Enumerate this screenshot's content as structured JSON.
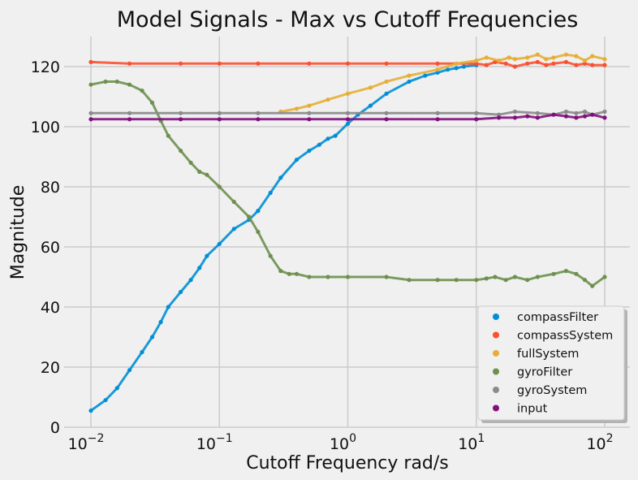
{
  "chart_data": {
    "type": "scatter",
    "title": "Model Signals - Max vs Cutoff Frequencies",
    "xlabel": "Cutoff Frequency rad/s",
    "ylabel": "Magnitude",
    "x_scale": "log",
    "xlim": [
      0.01,
      100
    ],
    "ylim": [
      0,
      130
    ],
    "x_ticks": [
      {
        "base": "10",
        "exp": "−2"
      },
      {
        "base": "10",
        "exp": "−1"
      },
      {
        "base": "10",
        "exp": "0"
      },
      {
        "base": "10",
        "exp": "1"
      },
      {
        "base": "10",
        "exp": "2"
      }
    ],
    "y_ticks": [
      "0",
      "20",
      "40",
      "60",
      "80",
      "100",
      "120"
    ],
    "grid": true,
    "legend_position": "lower-right",
    "series": [
      {
        "name": "compassFilter",
        "color": "#008fd5",
        "x": [
          0.01,
          0.013,
          0.016,
          0.02,
          0.025,
          0.03,
          0.035,
          0.04,
          0.05,
          0.06,
          0.07,
          0.08,
          0.1,
          0.13,
          0.17,
          0.2,
          0.25,
          0.3,
          0.4,
          0.5,
          0.6,
          0.7,
          0.8,
          1.0,
          1.2,
          1.5,
          2.0,
          3.0,
          4.0,
          5.0,
          6.0,
          7.0,
          8.0,
          10.0
        ],
        "y": [
          5.5,
          9.0,
          13.0,
          19.0,
          25.0,
          30.0,
          35.0,
          40.0,
          45.0,
          49.0,
          53.0,
          57.0,
          61.0,
          66.0,
          69.0,
          72.0,
          78.0,
          83.0,
          89.0,
          92.0,
          94.0,
          96.0,
          97.0,
          101.0,
          104.0,
          107.0,
          111.0,
          115.0,
          117.0,
          118.0,
          119.0,
          119.5,
          120.0,
          120.5
        ]
      },
      {
        "name": "compassSystem",
        "color": "#fc4f30",
        "x": [
          0.01,
          0.02,
          0.05,
          0.1,
          0.2,
          0.5,
          1.0,
          2.0,
          5.0,
          10.0,
          12.0,
          14.0,
          17.0,
          20.0,
          25.0,
          30.0,
          35.0,
          40.0,
          50.0,
          60.0,
          70.0,
          80.0,
          100.0
        ],
        "y": [
          121.5,
          121.0,
          121.0,
          121.0,
          121.0,
          121.0,
          121.0,
          121.0,
          121.0,
          121.0,
          120.5,
          121.5,
          121.0,
          120.0,
          121.0,
          121.5,
          120.5,
          121.0,
          121.5,
          120.5,
          121.0,
          120.5,
          120.5
        ]
      },
      {
        "name": "fullSystem",
        "color": "#e5ae38",
        "x": [
          0.3,
          0.4,
          0.5,
          0.7,
          1.0,
          1.5,
          2.0,
          3.0,
          5.0,
          7.0,
          10.0,
          12.0,
          15.0,
          18.0,
          20.0,
          25.0,
          30.0,
          35.0,
          40.0,
          50.0,
          60.0,
          70.0,
          80.0,
          100.0
        ],
        "y": [
          105.0,
          106.0,
          107.0,
          109.0,
          111.0,
          113.0,
          115.0,
          117.0,
          119.0,
          121.0,
          122.0,
          123.0,
          122.0,
          123.0,
          122.5,
          123.0,
          124.0,
          122.5,
          123.0,
          124.0,
          123.5,
          122.0,
          123.5,
          122.5
        ]
      },
      {
        "name": "gyroFilter",
        "color": "#6d904f",
        "x": [
          0.01,
          0.013,
          0.016,
          0.02,
          0.025,
          0.03,
          0.035,
          0.04,
          0.05,
          0.06,
          0.07,
          0.08,
          0.1,
          0.13,
          0.17,
          0.2,
          0.25,
          0.3,
          0.35,
          0.4,
          0.5,
          0.7,
          1.0,
          2.0,
          3.0,
          5.0,
          7.0,
          10.0,
          12.0,
          14.0,
          17.0,
          20.0,
          25.0,
          30.0,
          40.0,
          50.0,
          60.0,
          70.0,
          80.0,
          100.0
        ],
        "y": [
          114.0,
          115.0,
          115.0,
          114.0,
          112.0,
          108.0,
          102.0,
          97.0,
          92.0,
          88.0,
          85.0,
          84.0,
          80.0,
          75.0,
          70.0,
          65.0,
          57.0,
          52.0,
          51.0,
          51.0,
          50.0,
          50.0,
          50.0,
          50.0,
          49.0,
          49.0,
          49.0,
          49.0,
          49.5,
          50.0,
          49.0,
          50.0,
          49.0,
          50.0,
          51.0,
          52.0,
          51.0,
          49.0,
          47.0,
          50.0
        ]
      },
      {
        "name": "gyroSystem",
        "color": "#8b8b8b",
        "x": [
          0.01,
          0.02,
          0.05,
          0.1,
          0.2,
          0.5,
          1.0,
          2.0,
          5.0,
          10.0,
          15.0,
          20.0,
          30.0,
          40.0,
          50.0,
          60.0,
          70.0,
          80.0,
          100.0
        ],
        "y": [
          104.5,
          104.5,
          104.5,
          104.5,
          104.5,
          104.5,
          104.5,
          104.5,
          104.5,
          104.5,
          104.0,
          105.0,
          104.5,
          104.0,
          105.0,
          104.5,
          105.0,
          104.0,
          105.0
        ]
      },
      {
        "name": "input",
        "color": "#810f7c",
        "x": [
          0.01,
          0.02,
          0.05,
          0.1,
          0.2,
          0.5,
          1.0,
          2.0,
          5.0,
          10.0,
          15.0,
          20.0,
          25.0,
          30.0,
          40.0,
          50.0,
          60.0,
          70.0,
          80.0,
          100.0
        ],
        "y": [
          102.5,
          102.5,
          102.5,
          102.5,
          102.5,
          102.5,
          102.5,
          102.5,
          102.5,
          102.5,
          103.0,
          103.0,
          103.5,
          103.0,
          104.0,
          103.5,
          103.0,
          103.5,
          104.0,
          103.0
        ]
      }
    ]
  }
}
